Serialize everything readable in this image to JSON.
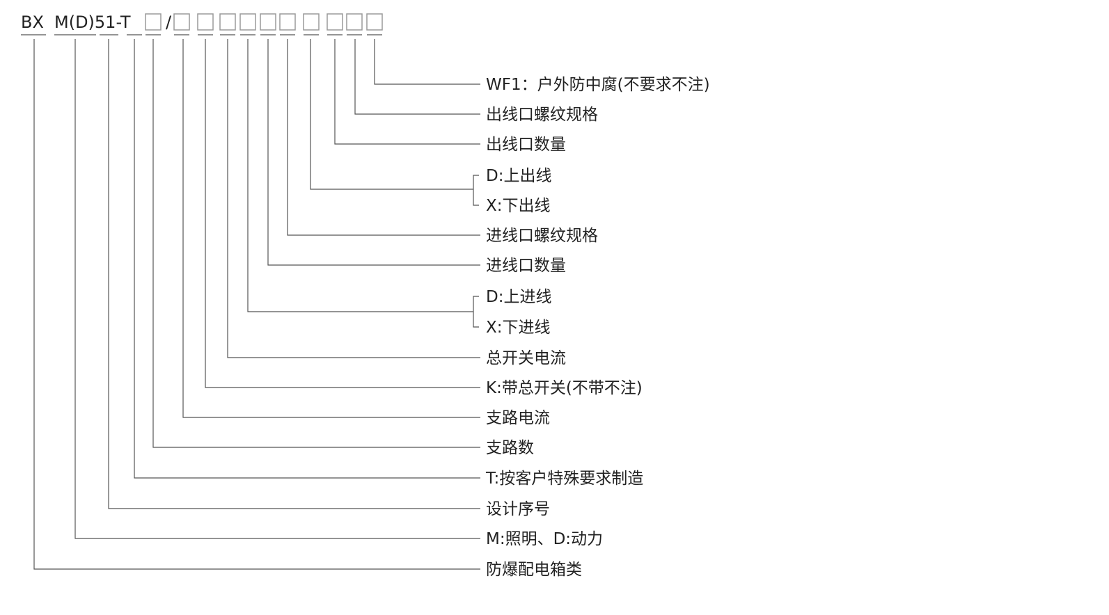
{
  "model_code": {
    "prefix": "BX",
    "series": "M(D)51-T",
    "slash": "/",
    "placeholder_box_count": 11
  },
  "labels": [
    {
      "id": "wf1",
      "text": "WF1：户外防中腐(不要求不注)"
    },
    {
      "id": "outlet-thread",
      "text": "出线口螺纹规格"
    },
    {
      "id": "outlet-count",
      "text": "出线口数量"
    },
    {
      "id": "outlet-top",
      "text": "D:上出线"
    },
    {
      "id": "outlet-bottom",
      "text": "X:下出线"
    },
    {
      "id": "inlet-thread",
      "text": "进线口螺纹规格"
    },
    {
      "id": "inlet-count",
      "text": "进线口数量"
    },
    {
      "id": "inlet-top",
      "text": "D:上进线"
    },
    {
      "id": "inlet-bottom",
      "text": "X:下进线"
    },
    {
      "id": "main-switch-current",
      "text": "总开关电流"
    },
    {
      "id": "main-switch",
      "text": "K:带总开关(不带不注)"
    },
    {
      "id": "branch-current",
      "text": "支路电流"
    },
    {
      "id": "branch-count",
      "text": "支路数"
    },
    {
      "id": "custom",
      "text": "T:按客户特殊要求制造"
    },
    {
      "id": "design-no",
      "text": "设计序号"
    },
    {
      "id": "usage",
      "text": "M:照明、D:动力"
    },
    {
      "id": "category",
      "text": "防爆配电箱类"
    }
  ]
}
